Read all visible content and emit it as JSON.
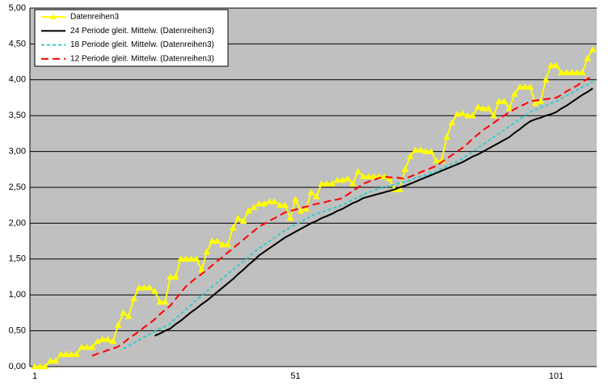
{
  "chart_data": {
    "type": "line",
    "categories": [
      "1",
      null,
      null,
      null,
      null,
      null,
      null,
      null,
      null,
      null,
      null,
      null,
      null,
      null,
      null,
      null,
      null,
      null,
      null,
      null,
      null,
      null,
      null,
      null,
      null,
      null,
      null,
      null,
      null,
      null,
      null,
      null,
      null,
      null,
      null,
      null,
      null,
      null,
      null,
      null,
      null,
      null,
      null,
      null,
      null,
      null,
      null,
      null,
      null,
      null,
      "51",
      null,
      null,
      null,
      null,
      null,
      null,
      null,
      null,
      null,
      null,
      null,
      null,
      null,
      null,
      null,
      null,
      null,
      null,
      null,
      null,
      null,
      null,
      null,
      null,
      null,
      null,
      null,
      null,
      null,
      null,
      null,
      null,
      null,
      null,
      null,
      null,
      null,
      null,
      null,
      null,
      null,
      null,
      null,
      null,
      null,
      null,
      null,
      null,
      null,
      "101",
      null,
      null,
      null,
      null,
      null,
      null,
      null
    ],
    "ylim": [
      0,
      5
    ],
    "yticks": [
      {
        "value": 0,
        "label": "0,00"
      },
      {
        "value": 0.5,
        "label": "0,50"
      },
      {
        "value": 1,
        "label": "1,00"
      },
      {
        "value": 1.5,
        "label": "1,50"
      },
      {
        "value": 2,
        "label": "2,00"
      },
      {
        "value": 2.5,
        "label": "2,50"
      },
      {
        "value": 3,
        "label": "3,00"
      },
      {
        "value": 3.5,
        "label": "3,50"
      },
      {
        "value": 4,
        "label": "4,00"
      },
      {
        "value": 4.5,
        "label": "4,50"
      },
      {
        "value": 5,
        "label": "5,00"
      }
    ],
    "grid": true,
    "legend": "top-left",
    "series": [
      {
        "name": "Datenreihen3",
        "color": "#ffff00",
        "marker": "triangle",
        "dash": "solid",
        "values": [
          0,
          0,
          0,
          0.08,
          0.08,
          0.17,
          0.17,
          0.17,
          0.17,
          0.27,
          0.27,
          0.27,
          0.35,
          0.38,
          0.38,
          0.35,
          0.58,
          0.75,
          0.7,
          0.95,
          1.1,
          1.1,
          1.1,
          1.05,
          0.9,
          0.9,
          1.25,
          1.25,
          1.5,
          1.5,
          1.5,
          1.5,
          1.35,
          1.6,
          1.75,
          1.75,
          1.7,
          1.7,
          1.93,
          2.07,
          2.03,
          2.17,
          2.22,
          2.27,
          2.27,
          2.3,
          2.3,
          2.25,
          2.25,
          2.07,
          2.33,
          2.17,
          2.2,
          2.43,
          2.37,
          2.55,
          2.55,
          2.55,
          2.6,
          2.6,
          2.62,
          2.55,
          2.72,
          2.65,
          2.65,
          2.65,
          2.65,
          2.65,
          2.62,
          2.47,
          2.47,
          2.75,
          2.93,
          3.02,
          3.02,
          3.0,
          3.0,
          2.87,
          2.87,
          3.2,
          3.4,
          3.52,
          3.53,
          3.5,
          3.5,
          3.62,
          3.6,
          3.6,
          3.5,
          3.7,
          3.7,
          3.6,
          3.8,
          3.9,
          3.9,
          3.9,
          3.67,
          3.7,
          4.0,
          4.2,
          4.2,
          4.1,
          4.1,
          4.1,
          4.1,
          4.1,
          4.3,
          4.42
        ]
      },
      {
        "name": "24 Periode gleit. Mittelw. (Datenreihen3)",
        "color": "#000000",
        "dash": "solid",
        "values": [
          null,
          null,
          null,
          null,
          null,
          null,
          null,
          null,
          null,
          null,
          null,
          null,
          null,
          null,
          null,
          null,
          null,
          null,
          null,
          null,
          null,
          null,
          null,
          0.43,
          0.46,
          0.5,
          0.53,
          0.59,
          0.64,
          0.7,
          0.76,
          0.81,
          0.87,
          0.92,
          0.98,
          1.04,
          1.1,
          1.16,
          1.22,
          1.29,
          1.35,
          1.42,
          1.48,
          1.55,
          1.6,
          1.65,
          1.7,
          1.75,
          1.8,
          1.84,
          1.88,
          1.92,
          1.96,
          2.0,
          2.03,
          2.07,
          2.1,
          2.13,
          2.17,
          2.2,
          2.24,
          2.28,
          2.31,
          2.35,
          2.37,
          2.39,
          2.41,
          2.43,
          2.45,
          2.47,
          2.5,
          2.52,
          2.55,
          2.58,
          2.61,
          2.64,
          2.67,
          2.7,
          2.73,
          2.76,
          2.79,
          2.82,
          2.85,
          2.89,
          2.93,
          2.96,
          3.0,
          3.04,
          3.08,
          3.12,
          3.16,
          3.2,
          3.26,
          3.31,
          3.37,
          3.42,
          3.45,
          3.47,
          3.5,
          3.52,
          3.55,
          3.6,
          3.64,
          3.69,
          3.74,
          3.79,
          3.83,
          3.88
        ]
      },
      {
        "name": "18 Periode gleit. Mittelw. (Datenreihen3)",
        "color": "#33cccc",
        "dash": "short",
        "values": [
          null,
          null,
          null,
          null,
          null,
          null,
          null,
          null,
          null,
          null,
          null,
          null,
          null,
          null,
          null,
          null,
          null,
          0.25,
          0.29,
          0.33,
          0.37,
          0.41,
          0.45,
          0.49,
          0.53,
          0.56,
          0.6,
          0.67,
          0.73,
          0.8,
          0.86,
          0.93,
          0.99,
          1.05,
          1.11,
          1.17,
          1.23,
          1.29,
          1.35,
          1.41,
          1.47,
          1.53,
          1.59,
          1.65,
          1.7,
          1.75,
          1.8,
          1.85,
          1.9,
          1.94,
          1.98,
          2.02,
          2.06,
          2.1,
          2.13,
          2.15,
          2.18,
          2.2,
          2.23,
          2.25,
          2.29,
          2.33,
          2.36,
          2.4,
          2.43,
          2.45,
          2.48,
          2.5,
          2.52,
          2.54,
          2.56,
          2.58,
          2.6,
          2.63,
          2.65,
          2.67,
          2.7,
          2.72,
          2.76,
          2.79,
          2.83,
          2.86,
          2.9,
          2.95,
          3.0,
          3.05,
          3.1,
          3.15,
          3.2,
          3.25,
          3.3,
          3.35,
          3.4,
          3.45,
          3.5,
          3.55,
          3.58,
          3.61,
          3.64,
          3.67,
          3.7,
          3.74,
          3.78,
          3.82,
          3.86,
          3.9,
          3.93,
          3.97
        ]
      },
      {
        "name": "12 Periode gleit. Mittelw. (Datenreihen3)",
        "color": "#ff0000",
        "dash": "long",
        "values": [
          null,
          null,
          null,
          null,
          null,
          null,
          null,
          null,
          null,
          null,
          null,
          0.15,
          0.18,
          0.2,
          0.23,
          0.25,
          0.28,
          0.33,
          0.39,
          0.44,
          0.49,
          0.55,
          0.6,
          0.66,
          0.73,
          0.79,
          0.85,
          0.94,
          1.03,
          1.12,
          1.18,
          1.24,
          1.29,
          1.35,
          1.41,
          1.47,
          1.53,
          1.59,
          1.65,
          1.71,
          1.77,
          1.83,
          1.89,
          1.95,
          1.99,
          2.03,
          2.07,
          2.11,
          2.15,
          2.17,
          2.19,
          2.21,
          2.23,
          2.25,
          2.27,
          2.28,
          2.3,
          2.32,
          2.33,
          2.35,
          2.4,
          2.45,
          2.5,
          2.55,
          2.58,
          2.6,
          2.63,
          2.65,
          2.64,
          2.64,
          2.63,
          2.62,
          2.65,
          2.68,
          2.71,
          2.74,
          2.77,
          2.8,
          2.85,
          2.9,
          2.95,
          3.0,
          3.05,
          3.11,
          3.18,
          3.24,
          3.3,
          3.35,
          3.4,
          3.45,
          3.5,
          3.55,
          3.59,
          3.63,
          3.66,
          3.7,
          3.71,
          3.72,
          3.73,
          3.74,
          3.75,
          3.79,
          3.84,
          3.88,
          3.92,
          3.97,
          4.01,
          4.05
        ]
      }
    ]
  }
}
